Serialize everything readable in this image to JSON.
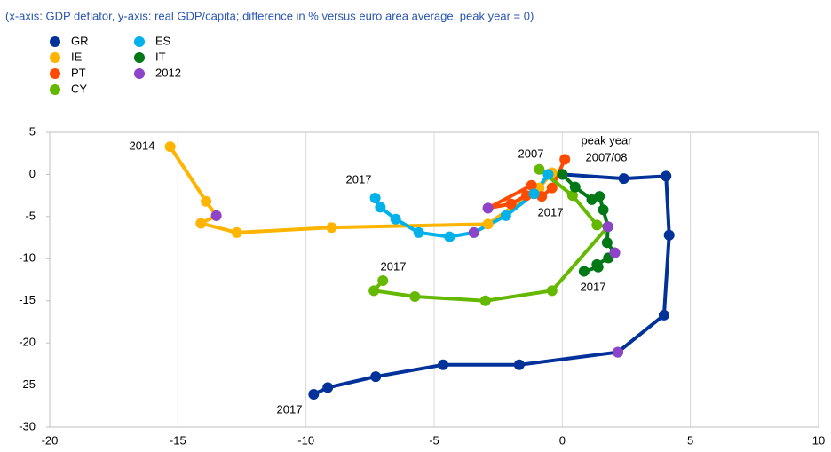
{
  "chart_data": {
    "type": "scatter",
    "subtitle": "(x-axis: GDP deflator, y-axis: real GDP/capita;,difference in % versus euro area average, peak year = 0)",
    "xlim": [
      -20,
      10
    ],
    "xticks": [
      -20,
      -15,
      -10,
      -5,
      0,
      5,
      10
    ],
    "ylim": [
      -30,
      5
    ],
    "yticks": [
      -30,
      -25,
      -20,
      -15,
      -10,
      -5,
      0,
      5
    ],
    "grid": "x",
    "series": [
      {
        "name": "GR",
        "color": "#003299",
        "line": true,
        "x": [
          0,
          2.4,
          4.05,
          4.17,
          3.97,
          2.17,
          -1.68,
          -4.65,
          -7.28,
          -9.15,
          -9.7
        ],
        "y": [
          0,
          -0.5,
          -0.2,
          -7.2,
          -16.7,
          -21.1,
          -22.6,
          -22.6,
          -24.0,
          -25.3,
          -26.1
        ]
      },
      {
        "name": "IE",
        "color": "#FFB400",
        "line": true,
        "x": [
          -0.4,
          -0.9,
          -2.9,
          -9.0,
          -12.7,
          -14.1,
          -13.5,
          -13.9,
          -15.3
        ],
        "y": [
          0.2,
          -1.6,
          -5.9,
          -6.3,
          -6.9,
          -5.8,
          -4.9,
          -3.2,
          3.3
        ]
      },
      {
        "name": "PT",
        "color": "#FF4B00",
        "line": true,
        "x": [
          0.1,
          -0.4,
          -0.8,
          -1.2,
          -2.9,
          -2.0,
          -1.4
        ],
        "y": [
          1.8,
          -1.6,
          -2.6,
          -1.3,
          -4.0,
          -3.5,
          -2.5
        ]
      },
      {
        "name": "CY",
        "color": "#65B800",
        "line": true,
        "x": [
          -0.9,
          0.4,
          1.35,
          1.78,
          -0.4,
          -3.0,
          -5.75,
          -7.35,
          -7.0
        ],
        "y": [
          0.6,
          -2.5,
          -6.0,
          -6.2,
          -13.8,
          -15.0,
          -14.5,
          -13.8,
          -12.6
        ]
      },
      {
        "name": "ES",
        "color": "#00B1EA",
        "line": true,
        "x": [
          -0.55,
          -1.1,
          -2.2,
          -3.45,
          -4.4,
          -5.6,
          -6.5,
          -7.1,
          -7.3
        ],
        "y": [
          0,
          -2.3,
          -4.9,
          -6.9,
          -7.4,
          -6.9,
          -5.3,
          -3.9,
          -2.8
        ]
      },
      {
        "name": "IT",
        "color": "#007816",
        "line": true,
        "x": [
          0,
          0.5,
          1.15,
          1.45,
          1.6,
          1.78,
          1.75,
          2.05,
          1.8,
          1.35,
          1.4,
          0.85
        ],
        "y": [
          0,
          -1.5,
          -3.0,
          -2.6,
          -4.2,
          -6.2,
          -8.1,
          -9.3,
          -9.9,
          -10.7,
          -11.0,
          -11.5
        ]
      },
      {
        "name": "2012",
        "color": "#8E44C9",
        "line": false,
        "x": [
          -13.5,
          -2.9,
          -3.45,
          1.78,
          2.05,
          2.17
        ],
        "y": [
          -4.9,
          -4.0,
          -6.9,
          -6.2,
          -9.3,
          -21.1
        ]
      }
    ],
    "annotations": [
      "2014",
      "2017",
      "2007",
      "peak year",
      "2007/08",
      "2017",
      "2017",
      "2017",
      "2017"
    ]
  }
}
